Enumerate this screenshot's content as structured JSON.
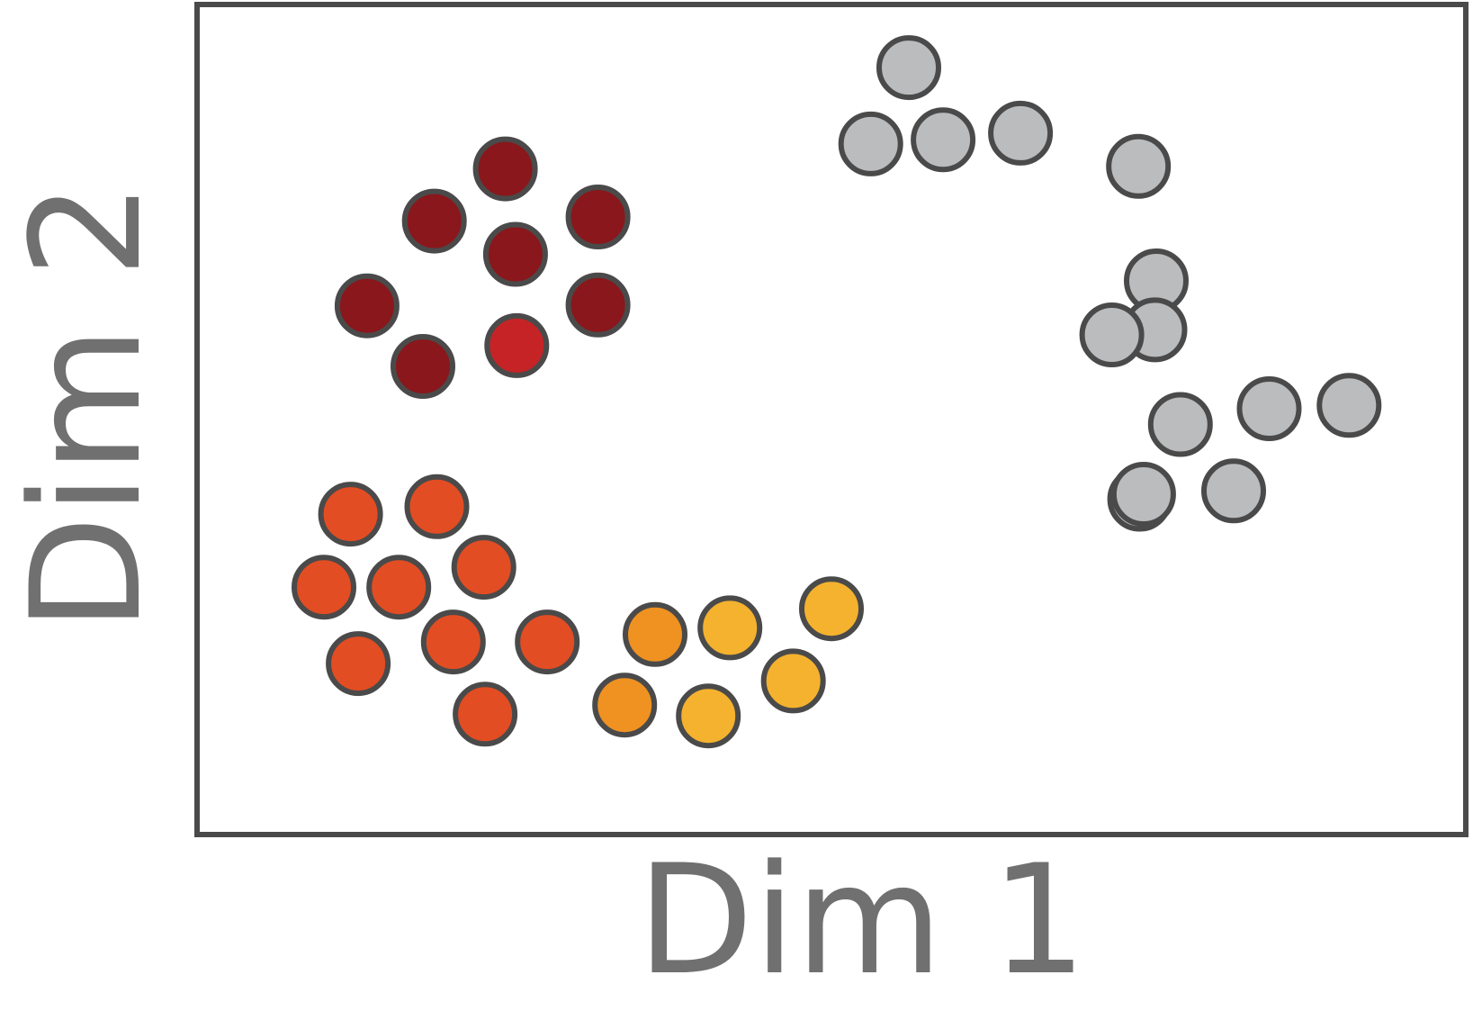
{
  "chart_data": {
    "type": "scatter",
    "title": "",
    "xlabel": "Dim 1",
    "ylabel": "Dim 2",
    "xlim": [
      0,
      1
    ],
    "ylim": [
      0,
      1
    ],
    "grid": false,
    "legend": "none",
    "marker_stroke_color": "#4a4a4a",
    "axis_color": "#4a4a4a",
    "label_color": "#707070",
    "groups": [
      {
        "color": "#8a171b",
        "points": [
          [
            0.243,
            0.802
          ],
          [
            0.187,
            0.739
          ],
          [
            0.251,
            0.699
          ],
          [
            0.316,
            0.744
          ],
          [
            0.134,
            0.637
          ],
          [
            0.316,
            0.638
          ],
          [
            0.178,
            0.564
          ]
        ]
      },
      {
        "color": "#c62326",
        "points": [
          [
            0.252,
            0.589
          ]
        ]
      },
      {
        "color": "#e34d23",
        "points": [
          [
            0.121,
            0.386
          ],
          [
            0.189,
            0.395
          ],
          [
            0.1,
            0.298
          ],
          [
            0.159,
            0.298
          ],
          [
            0.226,
            0.322
          ],
          [
            0.202,
            0.232
          ],
          [
            0.276,
            0.232
          ],
          [
            0.127,
            0.206
          ],
          [
            0.227,
            0.145
          ]
        ]
      },
      {
        "color": "#ef9222",
        "points": [
          [
            0.361,
            0.241
          ],
          [
            0.337,
            0.156
          ]
        ]
      },
      {
        "color": "#f5b22e",
        "points": [
          [
            0.42,
            0.249
          ],
          [
            0.5,
            0.272
          ],
          [
            0.47,
            0.185
          ],
          [
            0.403,
            0.143
          ]
        ]
      },
      {
        "color": "#bbbcbe",
        "points": [
          [
            0.561,
            0.924
          ],
          [
            0.531,
            0.832
          ],
          [
            0.588,
            0.837
          ],
          [
            0.649,
            0.845
          ],
          [
            0.742,
            0.805
          ],
          [
            0.756,
            0.667
          ],
          [
            0.755,
            0.608
          ],
          [
            0.721,
            0.602
          ],
          [
            0.775,
            0.494
          ],
          [
            0.845,
            0.513
          ],
          [
            0.908,
            0.517
          ],
          [
            0.743,
            0.404
          ],
          [
            0.746,
            0.41
          ],
          [
            0.817,
            0.414
          ]
        ]
      }
    ]
  }
}
